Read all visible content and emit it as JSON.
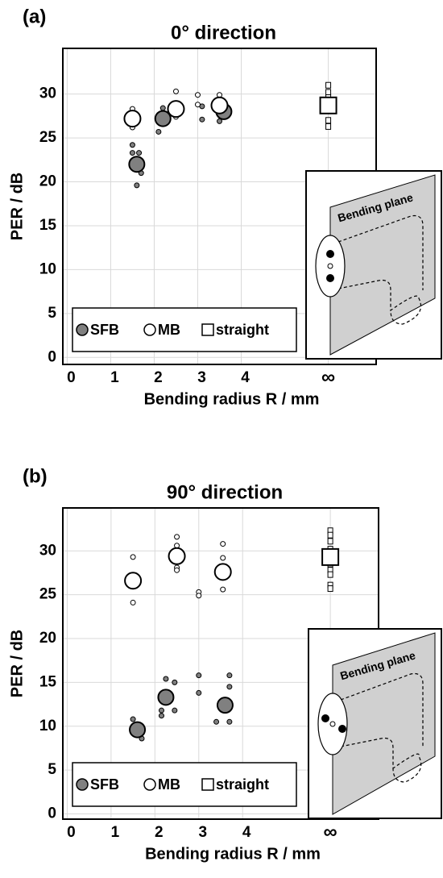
{
  "chart_data": [
    {
      "type": "scatter",
      "panel": "(a)",
      "title": "0° direction",
      "x_label": "Bending radius R / mm",
      "y_label": "PER / dB",
      "xlim": [
        -0.1,
        7.1
      ],
      "ylim": [
        -0.8,
        35.2
      ],
      "xticks": [
        0,
        1,
        2,
        3,
        4,
        {
          "value": 6,
          "label": "∞"
        }
      ],
      "yticks": [
        0,
        5,
        10,
        15,
        20,
        25,
        30
      ],
      "grid": true,
      "legend": "lower left",
      "inset_label": "Bending plane",
      "series": [
        {
          "name": "SFB",
          "color": "#808080",
          "marker": "circle",
          "mean": {
            "x": [
              1.6,
              2.2,
              3.6
            ],
            "values": [
              22,
              27.2,
              28
            ]
          },
          "individual": {
            "x": [
              1.5,
              1.5,
              1.65,
              1.6,
              1.6,
              1.7,
              1.7,
              2.1,
              2.1,
              2.2,
              3.1,
              3.1,
              3.5,
              3.7
            ],
            "values": [
              24.2,
              23.3,
              23.3,
              21.8,
              19.6,
              21,
              22,
              25.7,
              27,
              28.4,
              28.6,
              27.1,
              26.9,
              27.8
            ]
          }
        },
        {
          "name": "MB",
          "color": "#ffffff",
          "marker": "circle",
          "mean": {
            "x": [
              1.5,
              2.5,
              3.5
            ],
            "values": [
              27.2,
              28.3,
              28.7
            ]
          },
          "individual": {
            "x": [
              1.5,
              1.5,
              2.5,
              2.5,
              3.0,
              3.0,
              3.5,
              3.5
            ],
            "values": [
              28.3,
              26.2,
              30.3,
              27.4,
              29.9,
              28.8,
              29.9,
              28.0
            ]
          }
        },
        {
          "name": "straight",
          "color": "#ffffff",
          "marker": "square",
          "mean": {
            "x": [
              6
            ],
            "values": [
              28.7
            ]
          },
          "individual": {
            "x": [
              6,
              6,
              6,
              6,
              6
            ],
            "values": [
              31,
              30.2,
              29.6,
              27,
              26.3
            ]
          }
        }
      ]
    },
    {
      "type": "scatter",
      "panel": "(b)",
      "title": "90° direction",
      "x_label": "Bending radius R / mm",
      "y_label": "PER / dB",
      "xlim": [
        -0.1,
        7.1
      ],
      "ylim": [
        -0.6,
        34.9
      ],
      "xticks": [
        0,
        1,
        2,
        3,
        4,
        {
          "value": 6,
          "label": "∞"
        }
      ],
      "yticks": [
        0,
        5,
        10,
        15,
        20,
        25,
        30
      ],
      "grid": true,
      "legend": "lower left",
      "inset_label": "Bending plane",
      "series": [
        {
          "name": "SFB",
          "color": "#808080",
          "marker": "circle",
          "mean": {
            "x": [
              1.6,
              2.25,
              3.6
            ],
            "values": [
              9.6,
              13.3,
              12.4
            ]
          },
          "individual": {
            "x": [
              1.5,
              1.5,
              1.7,
              2.15,
              2.15,
              2.25,
              2.45,
              2.45,
              3.0,
              3.0,
              3.4,
              3.7,
              3.7,
              3.7
            ],
            "values": [
              10.8,
              9.8,
              8.6,
              11.8,
              11.2,
              15.4,
              15,
              11.8,
              15.8,
              13.8,
              10.5,
              15.8,
              14.5,
              10.5
            ]
          }
        },
        {
          "name": "MB",
          "color": "#ffffff",
          "marker": "circle",
          "mean": {
            "x": [
              1.5,
              2.5,
              3.55
            ],
            "values": [
              26.6,
              29.4,
              27.6
            ]
          },
          "individual": {
            "x": [
              1.5,
              1.5,
              2.5,
              2.5,
              2.5,
              2.5,
              3.0,
              3.0,
              3.55,
              3.55,
              3.55
            ],
            "values": [
              29.3,
              24.1,
              31.6,
              30.6,
              28.1,
              27.8,
              25.3,
              24.9,
              30.8,
              29.2,
              25.6
            ]
          }
        },
        {
          "name": "straight",
          "color": "#ffffff",
          "marker": "square",
          "mean": {
            "x": [
              6
            ],
            "values": [
              29.3
            ]
          },
          "individual": {
            "x": [
              6,
              6,
              6,
              6,
              6,
              6,
              6,
              6,
              6
            ],
            "values": [
              32.3,
              31.8,
              31.1,
              30.2,
              28.5,
              27.8,
              27.3,
              26.1,
              25.7
            ]
          }
        }
      ]
    }
  ]
}
